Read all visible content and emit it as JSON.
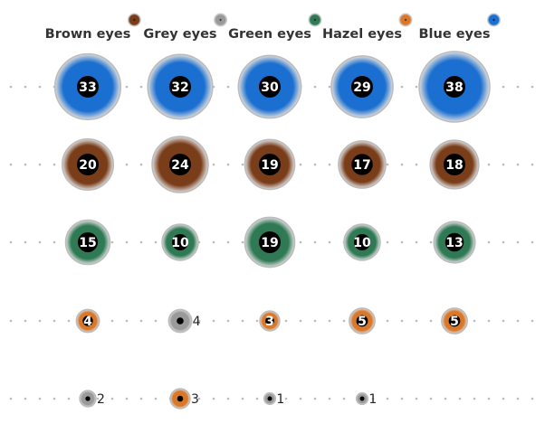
{
  "chart_data": {
    "type": "bubble",
    "categories": [
      "Brown eyes",
      "Grey eyes",
      "Green eyes",
      "Hazel eyes",
      "Blue eyes"
    ],
    "category_colors": [
      "#7a3d1a",
      "#9a9a9a",
      "#2f7a55",
      "#d9782a",
      "#1a6fd1"
    ],
    "series": [
      {
        "values": [
          33,
          32,
          30,
          29,
          38
        ],
        "colors": [
          "#1a6fd1",
          "#1a6fd1",
          "#1a6fd1",
          "#1a6fd1",
          "#1a6fd1"
        ]
      },
      {
        "values": [
          20,
          24,
          19,
          17,
          18
        ],
        "colors": [
          "#7a3d1a",
          "#7a3d1a",
          "#7a3d1a",
          "#7a3d1a",
          "#7a3d1a"
        ]
      },
      {
        "values": [
          15,
          10,
          19,
          10,
          13
        ],
        "colors": [
          "#2f7a55",
          "#2f7a55",
          "#2f7a55",
          "#2f7a55",
          "#2f7a55"
        ]
      },
      {
        "values": [
          4,
          4,
          3,
          5,
          5
        ],
        "colors": [
          "#d9782a",
          "#9a9a9a",
          "#d9782a",
          "#d9782a",
          "#d9782a"
        ]
      },
      {
        "values": [
          2,
          3,
          1,
          1,
          null
        ],
        "colors": [
          "#9a9a9a",
          "#d9782a",
          "#9a9a9a",
          "#9a9a9a",
          null
        ]
      }
    ]
  }
}
